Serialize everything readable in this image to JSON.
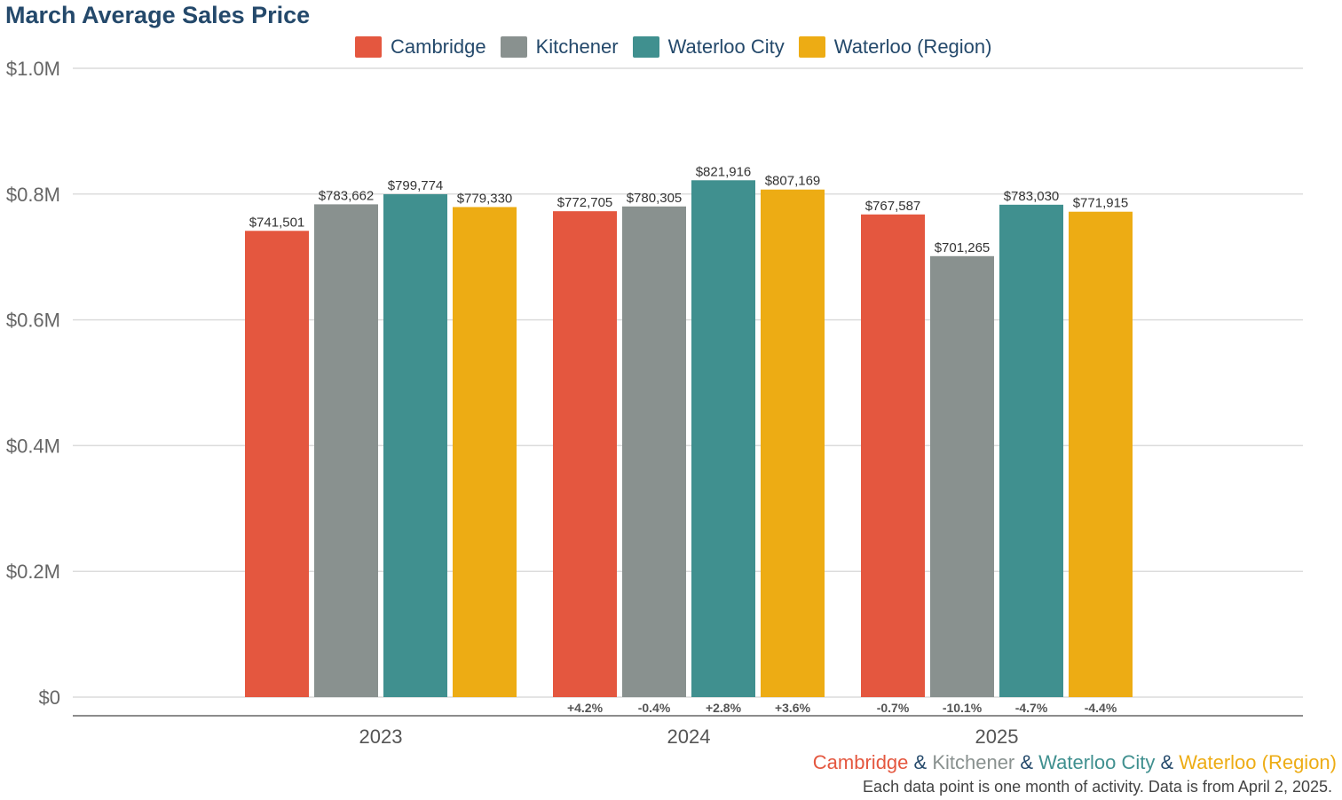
{
  "title": "March Average Sales Price",
  "chart_data": {
    "type": "bar",
    "title": "March Average Sales Price",
    "categories": [
      "2023",
      "2024",
      "2025"
    ],
    "series": [
      {
        "name": "Cambridge",
        "color": "#e4573f",
        "values": [
          741501,
          772705,
          767587
        ],
        "value_labels": [
          "$741,501",
          "$772,705",
          "$767,587"
        ],
        "change_labels": [
          "",
          "+4.2%",
          "-0.7%"
        ]
      },
      {
        "name": "Kitchener",
        "color": "#89918f",
        "values": [
          783662,
          780305,
          701265
        ],
        "value_labels": [
          "$783,662",
          "$780,305",
          "$701,265"
        ],
        "change_labels": [
          "",
          "-0.4%",
          "-10.1%"
        ]
      },
      {
        "name": "Waterloo City",
        "color": "#40908f",
        "values": [
          799774,
          821916,
          783030
        ],
        "value_labels": [
          "$799,774",
          "$821,916",
          "$783,030"
        ],
        "change_labels": [
          "",
          "+2.8%",
          "-4.7%"
        ]
      },
      {
        "name": "Waterloo (Region)",
        "color": "#edac14",
        "values": [
          779330,
          807169,
          771915
        ],
        "value_labels": [
          "$779,330",
          "$807,169",
          "$771,915"
        ],
        "change_labels": [
          "",
          "+3.6%",
          "-4.4%"
        ]
      }
    ],
    "ylim": [
      0,
      1000000
    ],
    "yticks": [
      0,
      200000,
      400000,
      600000,
      800000,
      1000000
    ],
    "ytick_labels": [
      "$0",
      "$0.2M",
      "$0.4M",
      "$0.6M",
      "$0.8M",
      "$1.0M"
    ],
    "grid": true,
    "legend_position": "top-center"
  },
  "footer": {
    "credit_parts": [
      {
        "text": "Cambridge",
        "color": "#e4573f"
      },
      {
        "text": " & ",
        "color": "#24496b"
      },
      {
        "text": "Kitchener",
        "color": "#89918f"
      },
      {
        "text": " & ",
        "color": "#24496b"
      },
      {
        "text": "Waterloo City",
        "color": "#40908f"
      },
      {
        "text": " & ",
        "color": "#24496b"
      },
      {
        "text": "Waterloo (Region)",
        "color": "#edac14"
      }
    ],
    "note": "Each data point is one month of activity. Data is from April 2, 2025."
  }
}
